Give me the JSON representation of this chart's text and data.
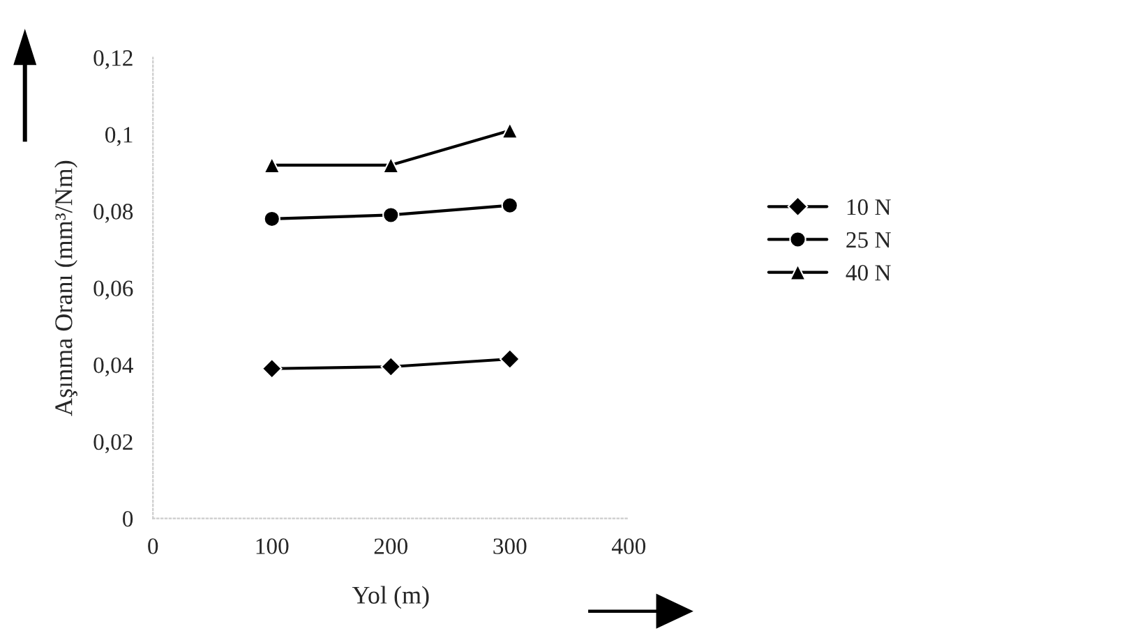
{
  "chart_data": {
    "type": "line",
    "xlabel": "Yol (m)",
    "ylabel": "Aşınma Oranı (mm³/Nm)",
    "x": [
      100,
      200,
      300
    ],
    "series": [
      {
        "name": "10 N",
        "color": "#000000",
        "marker": "diamond",
        "values": [
          0.039,
          0.0395,
          0.0415
        ]
      },
      {
        "name": "25 N",
        "color": "#000000",
        "marker": "circle",
        "values": [
          0.078,
          0.079,
          0.0815
        ]
      },
      {
        "name": "40 N",
        "color": "#000000",
        "marker": "triangle",
        "values": [
          0.092,
          0.092,
          0.101
        ]
      }
    ],
    "xlim": [
      0,
      400
    ],
    "xticks": [
      0,
      100,
      200,
      300,
      400
    ],
    "ylim": [
      0,
      0.12
    ],
    "yticks": [
      {
        "value": 0,
        "label": "0"
      },
      {
        "value": 0.02,
        "label": "0,02"
      },
      {
        "value": 0.04,
        "label": "0,04"
      },
      {
        "value": 0.06,
        "label": "0,06"
      },
      {
        "value": 0.08,
        "label": "0,08"
      },
      {
        "value": 0.1,
        "label": "0,1"
      },
      {
        "value": 0.12,
        "label": "0,12"
      }
    ],
    "grid": false,
    "legend": "right",
    "line_style": "solid"
  }
}
